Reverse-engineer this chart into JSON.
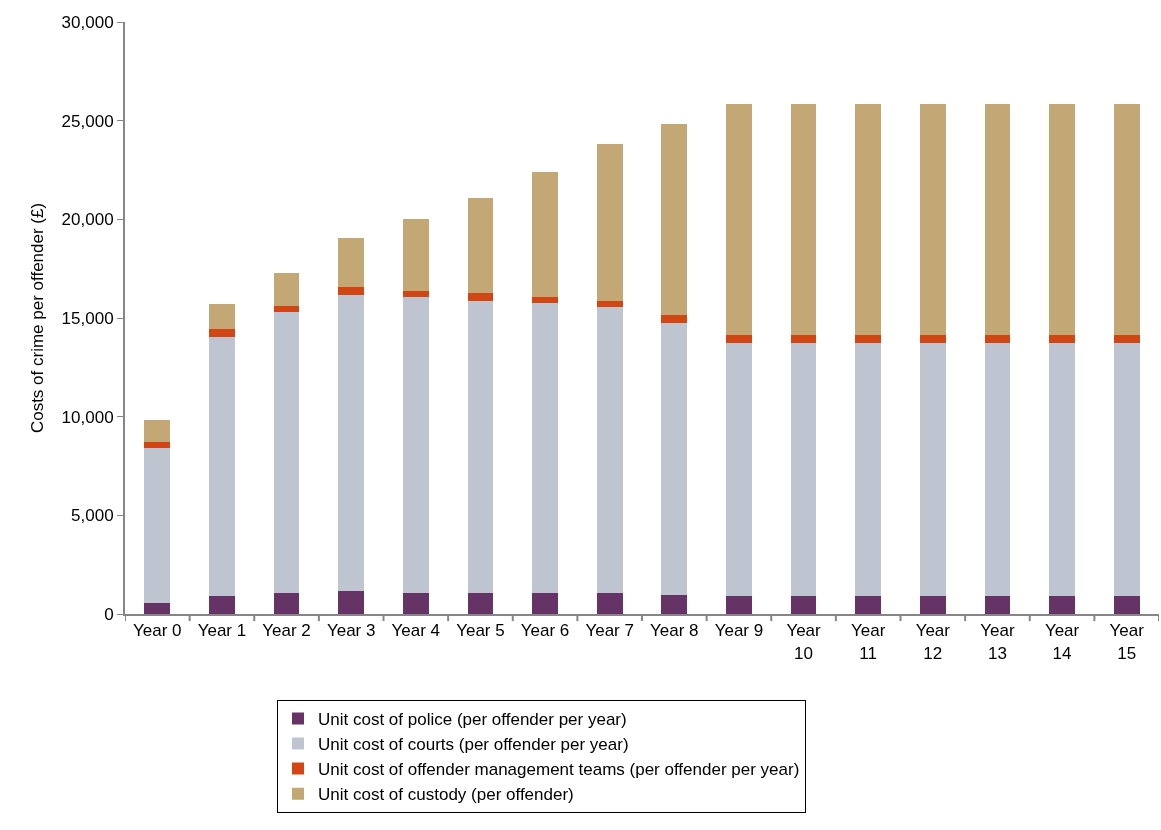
{
  "chart_data": {
    "type": "bar",
    "stacked": true,
    "ylabel": "Costs of crime per offender (£)",
    "categories": [
      "Year 0",
      "Year 1",
      "Year 2",
      "Year 3",
      "Year 4",
      "Year 5",
      "Year 6",
      "Year 7",
      "Year 8",
      "Year 9",
      "Year 10",
      "Year 11",
      "Year 12",
      "Year 13",
      "Year 14",
      "Year 15"
    ],
    "series": [
      {
        "name": "Unit cost of police (per offender per year)",
        "color": "#663366",
        "values": [
          550,
          930,
          1070,
          1150,
          1070,
          1070,
          1050,
          1050,
          980,
          930,
          930,
          930,
          930,
          930,
          930,
          930
        ]
      },
      {
        "name": "Unit cost of courts (per offender per year)",
        "color": "#bfc5d0",
        "values": [
          7840,
          13100,
          14240,
          15040,
          14980,
          14780,
          14720,
          14520,
          13780,
          12820,
          12820,
          12820,
          12820,
          12820,
          12820,
          12820
        ]
      },
      {
        "name": "Unit cost of offender management teams (per offender per year)",
        "color": "#d24614",
        "values": [
          340,
          390,
          320,
          400,
          320,
          400,
          310,
          310,
          390,
          410,
          410,
          410,
          410,
          410,
          410,
          410
        ]
      },
      {
        "name": "Unit cost of custody (per offender)",
        "color": "#c3a774",
        "values": [
          1080,
          1290,
          1640,
          2480,
          3630,
          4850,
          6330,
          7930,
          9660,
          11660,
          11660,
          11660,
          11660,
          11660,
          11660,
          11660
        ]
      }
    ],
    "ylim": [
      0,
      30000
    ],
    "yticks": [
      0,
      {
        "value": 5000,
        "label": "5,000"
      },
      {
        "value": 10000,
        "label": "10,000"
      },
      {
        "value": 15000,
        "label": "15,000"
      },
      {
        "value": 20000,
        "label": "20,000"
      },
      {
        "value": 25000,
        "label": "25,000"
      },
      {
        "value": 30000,
        "label": "30,000"
      }
    ],
    "grid": false,
    "legend": "bottom"
  }
}
